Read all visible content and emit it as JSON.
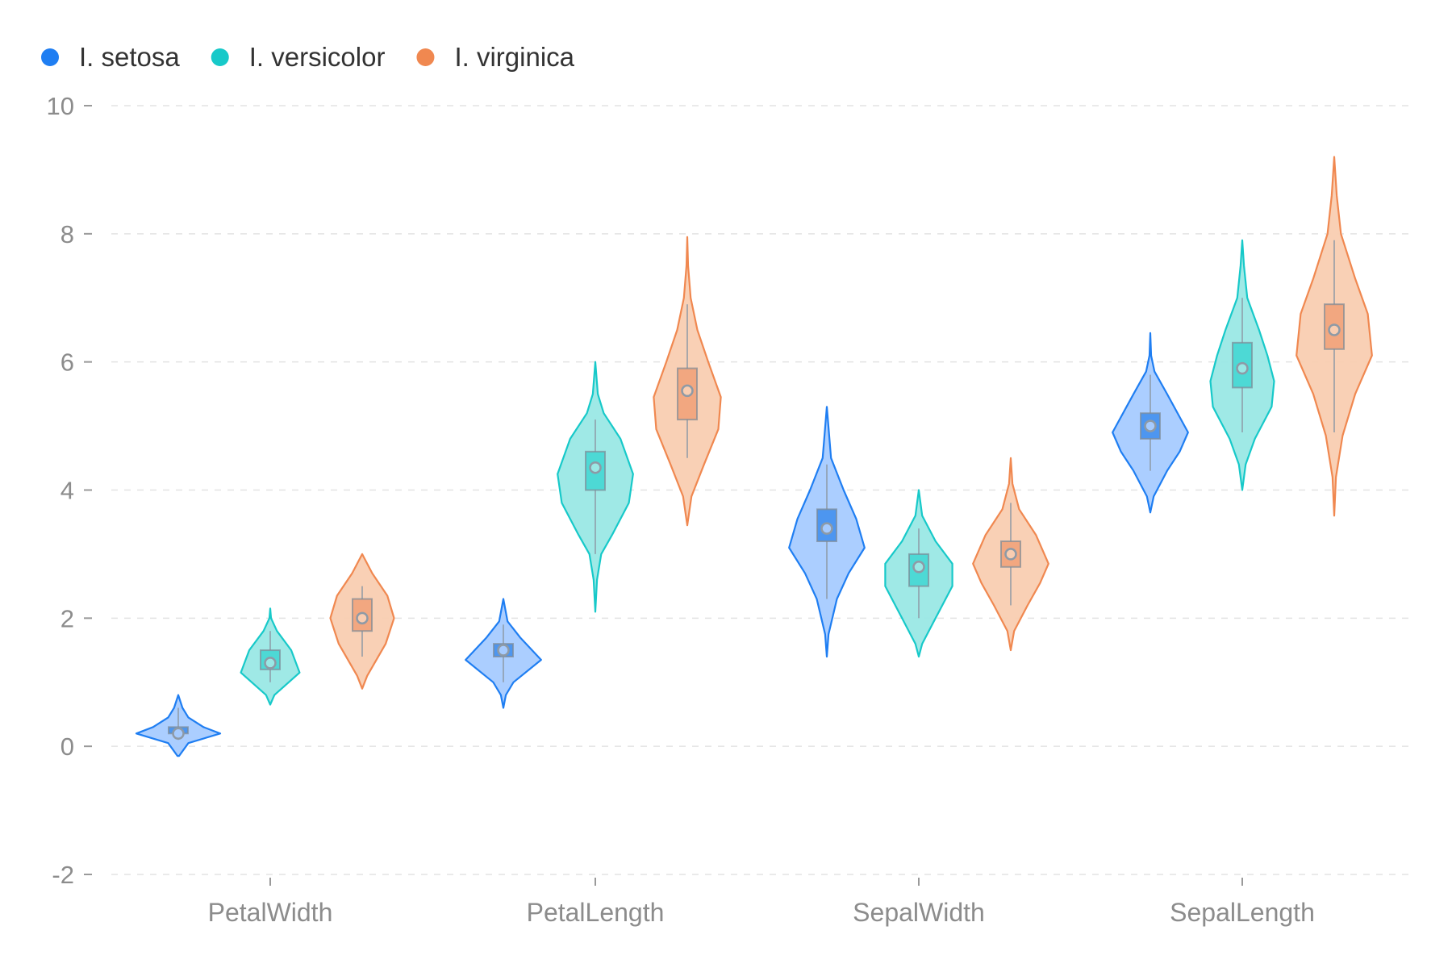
{
  "chart_data": {
    "type": "violin",
    "categories": [
      "PetalWidth",
      "PetalLength",
      "SepalWidth",
      "SepalLength"
    ],
    "ylim": [
      -2,
      10
    ],
    "yticks": [
      -2,
      0,
      2,
      4,
      6,
      8,
      10
    ],
    "grid": true,
    "legend_position": "top-left",
    "series": [
      {
        "name": "I. setosa",
        "color": "#1f7ef2",
        "fill": "#a6cbff",
        "box_fill": "#4d96f0",
        "stats": [
          {
            "category": "PetalWidth",
            "min": 0.1,
            "q1": 0.2,
            "median": 0.2,
            "q3": 0.3,
            "max": 0.6,
            "kde_low": -0.15,
            "kde_high": 0.8,
            "density": [
              [
                -0.15,
                0.01
              ],
              [
                0.05,
                0.12
              ],
              [
                0.2,
                0.5
              ],
              [
                0.3,
                0.3
              ],
              [
                0.45,
                0.12
              ],
              [
                0.6,
                0.05
              ],
              [
                0.8,
                0.0
              ]
            ]
          },
          {
            "category": "PetalLength",
            "min": 1.0,
            "q1": 1.4,
            "median": 1.5,
            "q3": 1.6,
            "max": 1.9,
            "kde_low": 0.6,
            "kde_high": 2.3,
            "density": [
              [
                0.6,
                0.0
              ],
              [
                0.8,
                0.03
              ],
              [
                1.0,
                0.12
              ],
              [
                1.35,
                0.45
              ],
              [
                1.7,
                0.2
              ],
              [
                1.95,
                0.05
              ],
              [
                2.3,
                0.0
              ]
            ]
          },
          {
            "category": "SepalWidth",
            "min": 2.3,
            "q1": 3.2,
            "median": 3.4,
            "q3": 3.7,
            "max": 4.4,
            "kde_low": 1.4,
            "kde_high": 5.3,
            "density": [
              [
                1.4,
                0.0
              ],
              [
                1.75,
                0.02
              ],
              [
                2.3,
                0.12
              ],
              [
                2.7,
                0.26
              ],
              [
                3.1,
                0.45
              ],
              [
                3.55,
                0.35
              ],
              [
                4.0,
                0.2
              ],
              [
                4.5,
                0.05
              ],
              [
                5.3,
                0.0
              ]
            ]
          },
          {
            "category": "SepalLength",
            "min": 4.3,
            "q1": 4.8,
            "median": 5.0,
            "q3": 5.2,
            "max": 5.8,
            "kde_low": 3.65,
            "kde_high": 6.45,
            "density": [
              [
                3.65,
                0.0
              ],
              [
                3.9,
                0.04
              ],
              [
                4.3,
                0.2
              ],
              [
                4.6,
                0.35
              ],
              [
                4.9,
                0.45
              ],
              [
                5.5,
                0.2
              ],
              [
                5.85,
                0.05
              ],
              [
                6.1,
                0.01
              ],
              [
                6.45,
                0.0
              ]
            ]
          }
        ]
      },
      {
        "name": "I. versicolor",
        "color": "#17c9c9",
        "fill": "#9ae8e5",
        "box_fill": "#4dd9d5",
        "stats": [
          {
            "category": "PetalWidth",
            "min": 1.0,
            "q1": 1.2,
            "median": 1.3,
            "q3": 1.5,
            "max": 1.8,
            "kde_low": 0.65,
            "kde_high": 2.15,
            "density": [
              [
                0.65,
                0.0
              ],
              [
                0.8,
                0.05
              ],
              [
                1.15,
                0.35
              ],
              [
                1.5,
                0.25
              ],
              [
                1.8,
                0.08
              ],
              [
                2.0,
                0.01
              ],
              [
                2.15,
                0.0
              ]
            ]
          },
          {
            "category": "PetalLength",
            "min": 3.0,
            "q1": 4.0,
            "median": 4.35,
            "q3": 4.6,
            "max": 5.1,
            "kde_low": 2.1,
            "kde_high": 6.0,
            "density": [
              [
                2.1,
                0.0
              ],
              [
                2.6,
                0.02
              ],
              [
                3.0,
                0.07
              ],
              [
                3.3,
                0.2
              ],
              [
                3.8,
                0.4
              ],
              [
                4.25,
                0.45
              ],
              [
                4.8,
                0.3
              ],
              [
                5.2,
                0.1
              ],
              [
                5.5,
                0.03
              ],
              [
                6.0,
                0.0
              ]
            ]
          },
          {
            "category": "SepalWidth",
            "min": 2.0,
            "q1": 2.5,
            "median": 2.8,
            "q3": 3.0,
            "max": 3.4,
            "kde_low": 1.4,
            "kde_high": 4.0,
            "density": [
              [
                1.4,
                0.0
              ],
              [
                1.6,
                0.04
              ],
              [
                2.0,
                0.2
              ],
              [
                2.5,
                0.4
              ],
              [
                2.85,
                0.4
              ],
              [
                3.2,
                0.2
              ],
              [
                3.6,
                0.04
              ],
              [
                4.0,
                0.0
              ]
            ]
          },
          {
            "category": "SepalLength",
            "min": 4.9,
            "q1": 5.6,
            "median": 5.9,
            "q3": 6.3,
            "max": 7.0,
            "kde_low": 4.0,
            "kde_high": 7.9,
            "density": [
              [
                4.0,
                0.0
              ],
              [
                4.4,
                0.04
              ],
              [
                4.8,
                0.15
              ],
              [
                5.3,
                0.35
              ],
              [
                5.7,
                0.38
              ],
              [
                6.1,
                0.3
              ],
              [
                6.5,
                0.2
              ],
              [
                7.0,
                0.06
              ],
              [
                7.5,
                0.02
              ],
              [
                7.9,
                0.0
              ]
            ]
          }
        ]
      },
      {
        "name": "I. virginica",
        "color": "#f08850",
        "fill": "#f9cdb1",
        "box_fill": "#f2a780",
        "stats": [
          {
            "category": "PetalWidth",
            "min": 1.4,
            "q1": 1.8,
            "median": 2.0,
            "q3": 2.3,
            "max": 2.5,
            "kde_low": 0.9,
            "kde_high": 3.0,
            "density": [
              [
                0.9,
                0.0
              ],
              [
                1.1,
                0.06
              ],
              [
                1.6,
                0.28
              ],
              [
                2.0,
                0.38
              ],
              [
                2.35,
                0.3
              ],
              [
                2.7,
                0.12
              ],
              [
                3.0,
                0.0
              ]
            ]
          },
          {
            "category": "PetalLength",
            "min": 4.5,
            "q1": 5.1,
            "median": 5.55,
            "q3": 5.9,
            "max": 6.9,
            "kde_low": 3.45,
            "kde_high": 7.95,
            "density": [
              [
                3.45,
                0.0
              ],
              [
                3.9,
                0.05
              ],
              [
                4.4,
                0.2
              ],
              [
                4.95,
                0.37
              ],
              [
                5.45,
                0.4
              ],
              [
                6.0,
                0.25
              ],
              [
                6.5,
                0.12
              ],
              [
                7.0,
                0.04
              ],
              [
                7.5,
                0.01
              ],
              [
                7.95,
                0.0
              ]
            ]
          },
          {
            "category": "SepalWidth",
            "min": 2.2,
            "q1": 2.8,
            "median": 3.0,
            "q3": 3.2,
            "max": 3.8,
            "kde_low": 1.5,
            "kde_high": 4.5,
            "density": [
              [
                1.5,
                0.0
              ],
              [
                1.8,
                0.04
              ],
              [
                2.2,
                0.2
              ],
              [
                2.55,
                0.35
              ],
              [
                2.85,
                0.45
              ],
              [
                3.3,
                0.3
              ],
              [
                3.7,
                0.1
              ],
              [
                4.1,
                0.02
              ],
              [
                4.5,
                0.0
              ]
            ]
          },
          {
            "category": "SepalLength",
            "min": 4.9,
            "q1": 6.2,
            "median": 6.5,
            "q3": 6.9,
            "max": 7.9,
            "kde_low": 3.6,
            "kde_high": 9.2,
            "density": [
              [
                3.6,
                0.0
              ],
              [
                4.2,
                0.02
              ],
              [
                4.85,
                0.1
              ],
              [
                5.5,
                0.25
              ],
              [
                6.1,
                0.45
              ],
              [
                6.75,
                0.4
              ],
              [
                7.3,
                0.25
              ],
              [
                8.0,
                0.08
              ],
              [
                8.6,
                0.03
              ],
              [
                9.2,
                0.0
              ]
            ]
          }
        ]
      }
    ]
  }
}
